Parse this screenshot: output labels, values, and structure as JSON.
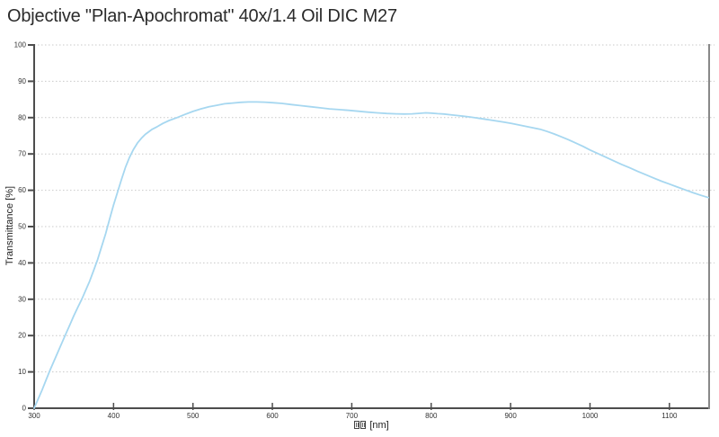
{
  "title": "Objective \"Plan-Apochromat\" 40x/1.4 Oil DIC M27",
  "chart_data": {
    "type": "line",
    "title": "Objective \"Plan-Apochromat\" 40x/1.4 Oil DIC M27",
    "xlabel": "[nm]",
    "xlabel_missing_glyphs": 2,
    "ylabel": "Transmittance [%]",
    "xlim": [
      300,
      1150
    ],
    "ylim": [
      0,
      100
    ],
    "xticks": [
      300,
      400,
      500,
      600,
      700,
      800,
      900,
      1000,
      1100
    ],
    "yticks": [
      0,
      10,
      20,
      30,
      40,
      50,
      60,
      70,
      80,
      90,
      100
    ],
    "grid": "horizontal-dotted",
    "legend": "none",
    "line_color": "#a6d7f0",
    "grid_color": "#c9c9c9",
    "axis_color": "#4d4d4d",
    "border_color": "#888888",
    "series_name": "Transmittance",
    "points": [
      [
        300,
        0
      ],
      [
        305,
        2.5
      ],
      [
        310,
        5
      ],
      [
        315,
        7.8
      ],
      [
        320,
        10.5
      ],
      [
        325,
        13
      ],
      [
        330,
        15.5
      ],
      [
        335,
        18
      ],
      [
        340,
        20.5
      ],
      [
        345,
        23
      ],
      [
        350,
        25.5
      ],
      [
        355,
        27.8
      ],
      [
        360,
        30
      ],
      [
        365,
        32.5
      ],
      [
        370,
        35
      ],
      [
        375,
        38
      ],
      [
        380,
        41
      ],
      [
        385,
        44.5
      ],
      [
        390,
        48
      ],
      [
        395,
        52
      ],
      [
        400,
        56
      ],
      [
        405,
        59.5
      ],
      [
        410,
        63
      ],
      [
        415,
        66.3
      ],
      [
        420,
        69
      ],
      [
        425,
        71.2
      ],
      [
        430,
        73
      ],
      [
        435,
        74.3
      ],
      [
        440,
        75.4
      ],
      [
        448,
        76.7
      ],
      [
        455,
        77.5
      ],
      [
        462,
        78.4
      ],
      [
        470,
        79.2
      ],
      [
        480,
        80.0
      ],
      [
        490,
        80.9
      ],
      [
        500,
        81.7
      ],
      [
        510,
        82.4
      ],
      [
        520,
        83.0
      ],
      [
        530,
        83.4
      ],
      [
        540,
        83.8
      ],
      [
        550,
        84.0
      ],
      [
        560,
        84.2
      ],
      [
        570,
        84.3
      ],
      [
        580,
        84.3
      ],
      [
        590,
        84.25
      ],
      [
        600,
        84.1
      ],
      [
        612,
        83.9
      ],
      [
        624,
        83.6
      ],
      [
        636,
        83.3
      ],
      [
        648,
        83.0
      ],
      [
        660,
        82.7
      ],
      [
        672,
        82.4
      ],
      [
        684,
        82.2
      ],
      [
        696,
        82.0
      ],
      [
        708,
        81.75
      ],
      [
        720,
        81.5
      ],
      [
        732,
        81.3
      ],
      [
        744,
        81.15
      ],
      [
        756,
        81.05
      ],
      [
        766,
        81.0
      ],
      [
        776,
        81.05
      ],
      [
        786,
        81.2
      ],
      [
        793,
        81.3
      ],
      [
        800,
        81.25
      ],
      [
        808,
        81.1
      ],
      [
        816,
        81.0
      ],
      [
        824,
        80.8
      ],
      [
        832,
        80.6
      ],
      [
        840,
        80.4
      ],
      [
        848,
        80.2
      ],
      [
        856,
        79.95
      ],
      [
        865,
        79.65
      ],
      [
        874,
        79.35
      ],
      [
        883,
        79.05
      ],
      [
        892,
        78.75
      ],
      [
        901,
        78.4
      ],
      [
        910,
        78.0
      ],
      [
        919,
        77.6
      ],
      [
        928,
        77.2
      ],
      [
        937,
        76.8
      ],
      [
        946,
        76.2
      ],
      [
        955,
        75.5
      ],
      [
        964,
        74.7
      ],
      [
        973,
        73.9
      ],
      [
        982,
        73.0
      ],
      [
        991,
        72.1
      ],
      [
        1000,
        71.1
      ],
      [
        1010,
        70.1
      ],
      [
        1020,
        69.1
      ],
      [
        1030,
        68.1
      ],
      [
        1040,
        67.1
      ],
      [
        1050,
        66.2
      ],
      [
        1060,
        65.2
      ],
      [
        1070,
        64.3
      ],
      [
        1080,
        63.4
      ],
      [
        1090,
        62.5
      ],
      [
        1100,
        61.7
      ],
      [
        1110,
        60.9
      ],
      [
        1120,
        60.1
      ],
      [
        1130,
        59.3
      ],
      [
        1140,
        58.6
      ],
      [
        1149,
        58.0
      ]
    ]
  }
}
